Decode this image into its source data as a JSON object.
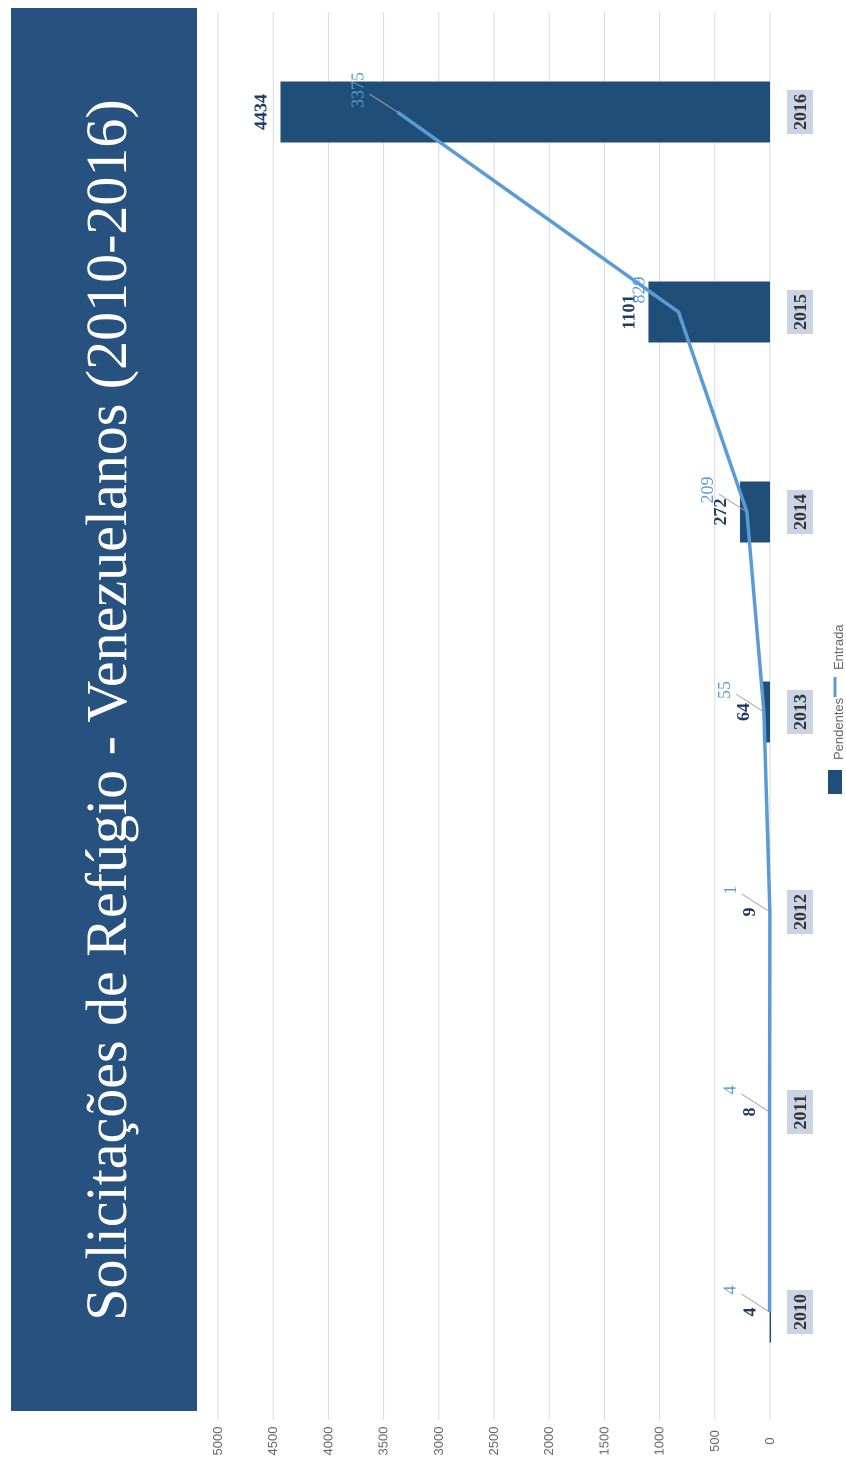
{
  "chart_data": {
    "type": "bar",
    "title": "Solicitações de Refúgio - Venezuelanos (2010-2016)",
    "categories": [
      "2010",
      "2011",
      "2012",
      "2013",
      "2014",
      "2015",
      "2016"
    ],
    "series": [
      {
        "name": "Pendentes",
        "kind": "bar",
        "values": [
          4,
          8,
          9,
          64,
          272,
          1101,
          4434
        ]
      },
      {
        "name": "Entrada",
        "kind": "line",
        "values": [
          4,
          4,
          1,
          55,
          209,
          829,
          3375
        ]
      }
    ],
    "ylim": [
      0,
      5000
    ],
    "yticks": [
      "0",
      "500",
      "1000",
      "1500",
      "2000",
      "2500",
      "3000",
      "3500",
      "4000",
      "4500",
      "5000"
    ],
    "grid": true,
    "legend": "bottom",
    "orientation": "rotated 90° counter-clockwise",
    "colors": {
      "bar": "#1f4e79",
      "line": "#5b9bd5",
      "title_bg": "#27527f",
      "category_bg": "#c9d4e4"
    }
  }
}
